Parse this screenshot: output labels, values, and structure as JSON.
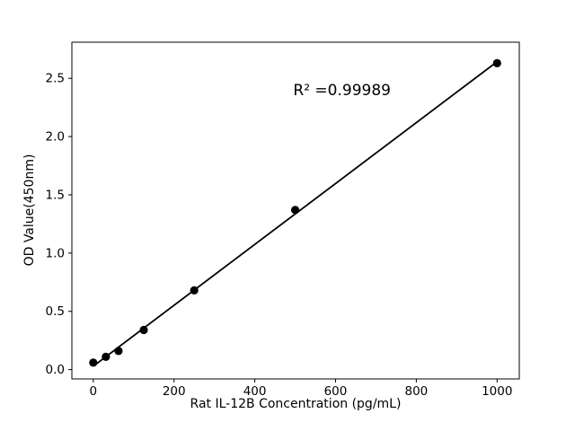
{
  "figure": {
    "background": "#ffffff"
  },
  "chart_data": {
    "type": "scatter",
    "title": "",
    "xlabel": "Rat IL-12B Concentration (pg/mL)",
    "ylabel": "OD Value(450nm)",
    "x": [
      0,
      31.25,
      62.5,
      125,
      250,
      500,
      1000
    ],
    "y": [
      0.06,
      0.11,
      0.16,
      0.34,
      0.68,
      1.37,
      2.63
    ],
    "fit_line": true,
    "annotation": {
      "text": "R² =0.99989",
      "x": 616,
      "y": 2.39
    },
    "xlim": [
      -53,
      1055
    ],
    "ylim": [
      -0.08,
      2.81
    ],
    "xticks": [
      0,
      200,
      400,
      600,
      800,
      1000
    ],
    "xtick_labels": [
      "0",
      "200",
      "400",
      "600",
      "800",
      "1000"
    ],
    "yticks": [
      0.0,
      0.5,
      1.0,
      1.5,
      2.0,
      2.5
    ],
    "ytick_labels": [
      "0.0",
      "0.5",
      "1.0",
      "1.5",
      "2.0",
      "2.5"
    ],
    "marker_color": "#000000",
    "line_color": "#000000",
    "axis_color": "#000000",
    "grid": false,
    "legend": null
  }
}
